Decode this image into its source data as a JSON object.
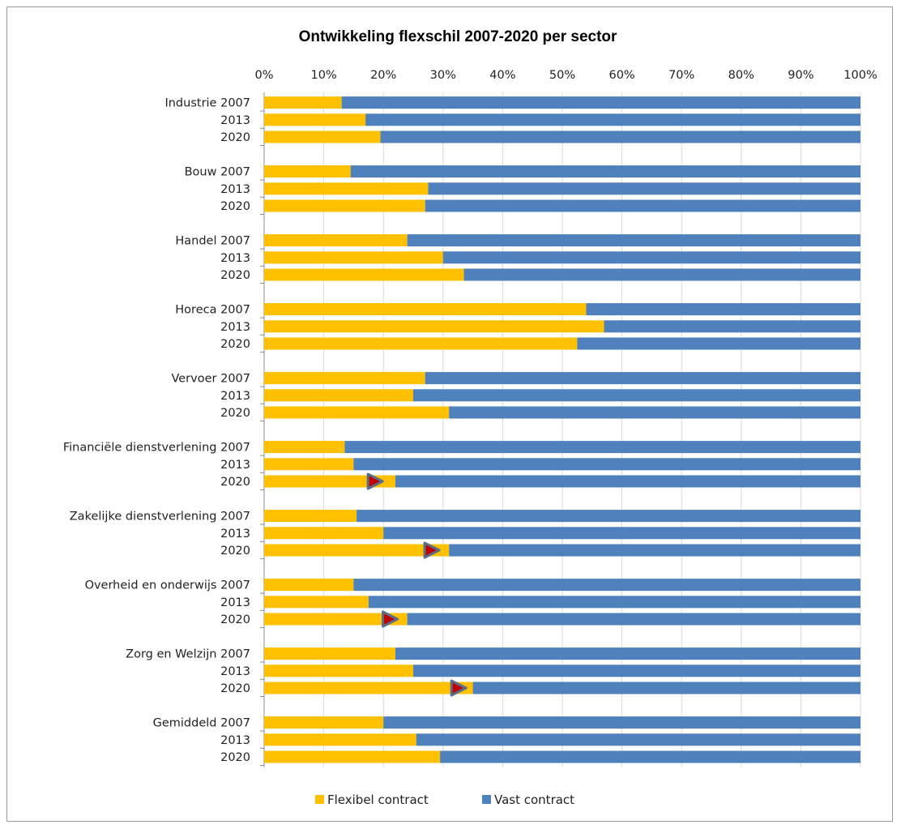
{
  "chart_data": {
    "type": "bar",
    "orientation": "horizontal",
    "stacked": "percent",
    "title": "Ontwikkeling flexschil 2007-2020 per sector",
    "x_ticks": [
      "0%",
      "10%",
      "20%",
      "30%",
      "40%",
      "50%",
      "60%",
      "70%",
      "80%",
      "90%",
      "100%"
    ],
    "xlim": [
      0,
      100
    ],
    "grid": true,
    "legend_position": "bottom",
    "groups": [
      {
        "sector": "Industrie",
        "rows": [
          {
            "label": "Industrie 2007",
            "flexibel": 13,
            "vast": 87
          },
          {
            "label": "2013",
            "flexibel": 17,
            "vast": 83
          },
          {
            "label": "2020",
            "flexibel": 19.5,
            "vast": 80.5
          }
        ]
      },
      {
        "sector": "Bouw",
        "rows": [
          {
            "label": "Bouw 2007",
            "flexibel": 14.5,
            "vast": 85.5
          },
          {
            "label": "2013",
            "flexibel": 27.5,
            "vast": 72.5
          },
          {
            "label": "2020",
            "flexibel": 27,
            "vast": 73
          }
        ]
      },
      {
        "sector": "Handel",
        "rows": [
          {
            "label": "Handel 2007",
            "flexibel": 24,
            "vast": 76
          },
          {
            "label": "2013",
            "flexibel": 30,
            "vast": 70
          },
          {
            "label": "2020",
            "flexibel": 33.5,
            "vast": 66.5
          }
        ]
      },
      {
        "sector": "Horeca",
        "rows": [
          {
            "label": "Horeca 2007",
            "flexibel": 54,
            "vast": 46
          },
          {
            "label": "2013",
            "flexibel": 57,
            "vast": 43
          },
          {
            "label": "2020",
            "flexibel": 52.5,
            "vast": 47.5
          }
        ]
      },
      {
        "sector": "Vervoer",
        "rows": [
          {
            "label": "Vervoer 2007",
            "flexibel": 27,
            "vast": 73
          },
          {
            "label": "2013",
            "flexibel": 25,
            "vast": 75
          },
          {
            "label": "2020",
            "flexibel": 31,
            "vast": 69
          }
        ]
      },
      {
        "sector": "Financiële dienstverlening",
        "rows": [
          {
            "label": "Financiële dienstverlening 2007",
            "flexibel": 13.5,
            "vast": 86.5
          },
          {
            "label": "2013",
            "flexibel": 15,
            "vast": 85
          },
          {
            "label": "2020",
            "flexibel": 22,
            "vast": 78,
            "marker": 18.5
          }
        ]
      },
      {
        "sector": "Zakelijke dienstverlening",
        "rows": [
          {
            "label": "Zakelijke dienstverlening 2007",
            "flexibel": 15.5,
            "vast": 84.5
          },
          {
            "label": "2013",
            "flexibel": 20,
            "vast": 80
          },
          {
            "label": "2020",
            "flexibel": 31,
            "vast": 69,
            "marker": 28
          }
        ]
      },
      {
        "sector": "Overheid en onderwijs",
        "rows": [
          {
            "label": "Overheid en onderwijs 2007",
            "flexibel": 15,
            "vast": 85
          },
          {
            "label": "2013",
            "flexibel": 17.5,
            "vast": 82.5
          },
          {
            "label": "2020",
            "flexibel": 24,
            "vast": 76,
            "marker": 21
          }
        ]
      },
      {
        "sector": "Zorg en Welzijn",
        "rows": [
          {
            "label": "Zorg en Welzijn 2007",
            "flexibel": 22,
            "vast": 78
          },
          {
            "label": "2013",
            "flexibel": 25,
            "vast": 75
          },
          {
            "label": "2020",
            "flexibel": 35,
            "vast": 65,
            "marker": 32.5
          }
        ]
      },
      {
        "sector": "Gemiddeld",
        "rows": [
          {
            "label": "Gemiddeld 2007",
            "flexibel": 20,
            "vast": 80
          },
          {
            "label": "2013",
            "flexibel": 25.5,
            "vast": 74.5
          },
          {
            "label": "2020",
            "flexibel": 29.5,
            "vast": 70.5
          }
        ]
      }
    ],
    "series": [
      {
        "name": "Flexibel contract",
        "key": "flexibel",
        "color": "#FFC000"
      },
      {
        "name": "Vast contract",
        "key": "vast",
        "color": "#4F81BD"
      }
    ],
    "marker_color": "#C00000",
    "marker_outline": "#5A6E8C"
  }
}
